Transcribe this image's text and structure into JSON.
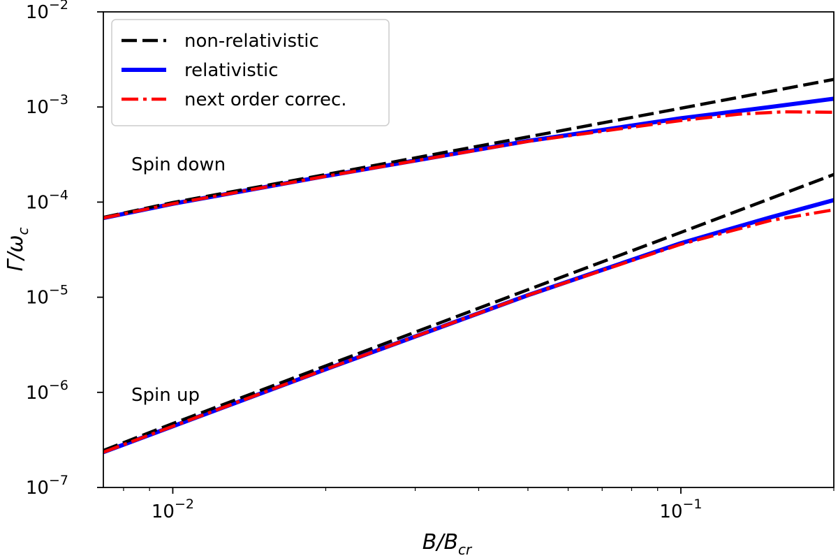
{
  "chart_data": {
    "type": "line",
    "xlabel": "B/B",
    "xlabel_sub": "cr",
    "ylabel": "Γ/ω",
    "ylabel_sub": "c",
    "x_scale": "log",
    "y_scale": "log",
    "xlim": [
      0.0073,
      0.2
    ],
    "ylim": [
      1e-07,
      0.01
    ],
    "grid": false,
    "legend_position": "top-left",
    "x_ticks": [
      {
        "value": 0.01,
        "base": "10",
        "exp": "−2"
      },
      {
        "value": 0.1,
        "base": "10",
        "exp": "−1"
      }
    ],
    "y_ticks": [
      {
        "value": 1e-07,
        "base": "10",
        "exp": "−7"
      },
      {
        "value": 1e-06,
        "base": "10",
        "exp": "−6"
      },
      {
        "value": 1e-05,
        "base": "10",
        "exp": "−5"
      },
      {
        "value": 0.0001,
        "base": "10",
        "exp": "−4"
      },
      {
        "value": 0.001,
        "base": "10",
        "exp": "−3"
      },
      {
        "value": 0.01,
        "base": "10",
        "exp": "−2"
      }
    ],
    "legend": [
      {
        "label": "non-relativistic",
        "color": "#000000",
        "style": "dashed"
      },
      {
        "label": "relativistic",
        "color": "#0000ff",
        "style": "solid"
      },
      {
        "label": "next order correc.",
        "color": "#ff0000",
        "style": "dashdot"
      }
    ],
    "annotations": [
      {
        "text": "Spin down",
        "x": 0.0105,
        "y": 0.00025
      },
      {
        "text": "Spin up",
        "x": 0.0105,
        "y": 9.5e-07
      }
    ],
    "series": [
      {
        "name": "non-relativistic",
        "group": "Spin down",
        "color": "#000000",
        "style": "dashed",
        "x": [
          0.0073,
          0.01,
          0.02,
          0.05,
          0.1,
          0.2
        ],
        "y": [
          6.9e-05,
          9.9e-05,
          0.000195,
          0.000485,
          0.00097,
          0.00195
        ]
      },
      {
        "name": "relativistic",
        "group": "Spin down",
        "color": "#0000ff",
        "style": "solid",
        "x": [
          0.0073,
          0.01,
          0.02,
          0.05,
          0.1,
          0.15,
          0.2
        ],
        "y": [
          6.8e-05,
          9.6e-05,
          0.000188,
          0.00044,
          0.00076,
          0.001,
          0.00122
        ]
      },
      {
        "name": "next order correc.",
        "group": "Spin down",
        "color": "#ff0000",
        "style": "dashdot",
        "x": [
          0.0073,
          0.01,
          0.02,
          0.05,
          0.1,
          0.13,
          0.16,
          0.2
        ],
        "y": [
          6.8e-05,
          9.6e-05,
          0.000187,
          0.000435,
          0.00072,
          0.00084,
          0.00089,
          0.00088
        ]
      },
      {
        "name": "non-relativistic",
        "group": "Spin up",
        "color": "#000000",
        "style": "dashed",
        "x": [
          0.0073,
          0.01,
          0.02,
          0.05,
          0.1,
          0.2
        ],
        "y": [
          2.45e-07,
          4.7e-07,
          1.9e-06,
          1.2e-05,
          4.8e-05,
          0.000195
        ]
      },
      {
        "name": "relativistic",
        "group": "Spin up",
        "color": "#0000ff",
        "style": "solid",
        "x": [
          0.0073,
          0.01,
          0.02,
          0.05,
          0.1,
          0.15,
          0.2
        ],
        "y": [
          2.35e-07,
          4.4e-07,
          1.75e-06,
          1.05e-05,
          3.7e-05,
          6.9e-05,
          0.000105
        ]
      },
      {
        "name": "next order correc.",
        "group": "Spin up",
        "color": "#ff0000",
        "style": "dashdot",
        "x": [
          0.0073,
          0.01,
          0.02,
          0.05,
          0.1,
          0.15,
          0.2
        ],
        "y": [
          2.35e-07,
          4.4e-07,
          1.75e-06,
          1.05e-05,
          3.6e-05,
          6.4e-05,
          8.3e-05
        ]
      }
    ]
  }
}
